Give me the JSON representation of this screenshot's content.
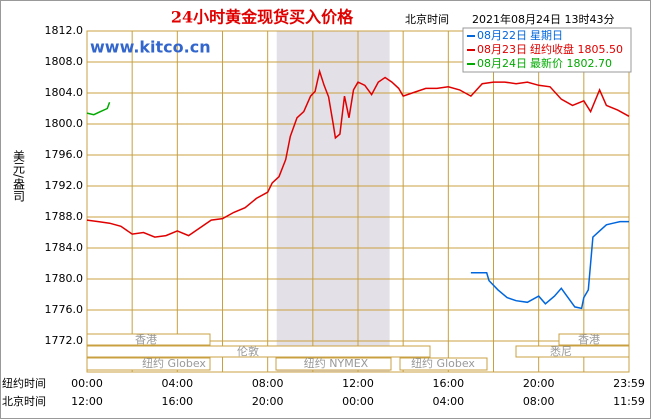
{
  "chart_data": {
    "type": "line",
    "title": "24小时黄金现货买入价格",
    "header_time_label": "北京时间",
    "header_time": "2021年08月24日 13时43分",
    "watermark": "www.kitco.cn",
    "y_label": "美元/盎司",
    "x_row_labels": [
      "纽约时间",
      "北京时间"
    ],
    "xlim": [
      0,
      24
    ],
    "xticks": [
      {
        "value": 0,
        "label": "00:00"
      },
      {
        "value": 4,
        "label": "04:00"
      },
      {
        "value": 8,
        "label": "08:00"
      },
      {
        "value": 12,
        "label": "12:00"
      },
      {
        "value": 16,
        "label": "16:00"
      },
      {
        "value": 20,
        "label": "20:00"
      },
      {
        "value": 24,
        "label": "23:59"
      }
    ],
    "x2ticks": [
      {
        "value": 0,
        "label": "12:00"
      },
      {
        "value": 4,
        "label": "16:00"
      },
      {
        "value": 8,
        "label": "20:00"
      },
      {
        "value": 12,
        "label": "00:00"
      },
      {
        "value": 16,
        "label": "04:00"
      },
      {
        "value": 20,
        "label": "08:00"
      },
      {
        "value": 24,
        "label": "11:59"
      }
    ],
    "xgrid": [
      0,
      2,
      4,
      6,
      8,
      10,
      12,
      14,
      16,
      18,
      20,
      22,
      24
    ],
    "ylim": [
      1772,
      1812
    ],
    "yticks": [
      {
        "value": 1772,
        "label": "1772.0"
      },
      {
        "value": 1776,
        "label": "1776.0"
      },
      {
        "value": 1780,
        "label": "1780.0"
      },
      {
        "value": 1784,
        "label": "1784.0"
      },
      {
        "value": 1788,
        "label": "1788.0"
      },
      {
        "value": 1792,
        "label": "1792.0"
      },
      {
        "value": 1796,
        "label": "1796.0"
      },
      {
        "value": 1800,
        "label": "1800.0"
      },
      {
        "value": 1804,
        "label": "1804.0"
      },
      {
        "value": 1808,
        "label": "1808.0"
      },
      {
        "value": 1812,
        "label": "1812.0"
      }
    ],
    "grid": true,
    "highlight_x": [
      8.4,
      13.4
    ],
    "sessions": [
      "香港",
      "伦敦",
      "纽约 Globex",
      "纽约 NYMEX",
      "纽约 Globex",
      "悉尼",
      "香港"
    ],
    "series": [
      {
        "name": "08月22日",
        "legend_text": "星期日",
        "color": "#0066dd",
        "x": [
          17,
          17.7,
          17.8,
          18.2,
          18.6,
          19,
          19.5,
          20,
          20.3,
          20.7,
          21,
          21.3,
          21.6,
          21.9,
          22,
          22.2,
          22.4,
          22.7,
          23,
          23.3,
          23.6,
          24
        ],
        "values": [
          1780.8,
          1780.8,
          1779.8,
          1778.6,
          1777.6,
          1777.2,
          1777.0,
          1777.8,
          1776.8,
          1777.8,
          1778.8,
          1777.6,
          1776.4,
          1776.2,
          1777.6,
          1778.6,
          1785.4,
          1786.2,
          1787.0,
          1787.2,
          1787.4,
          1787.4
        ]
      },
      {
        "name": "08月23日",
        "legend_text": "纽约收盘 1805.50",
        "color": "#e00000",
        "x": [
          0,
          0.5,
          1,
          1.5,
          2,
          2.5,
          3,
          3.5,
          4,
          4.5,
          5,
          5.5,
          6,
          6.5,
          7,
          7.5,
          8,
          8.2,
          8.5,
          8.8,
          9,
          9.3,
          9.6,
          9.9,
          10.1,
          10.3,
          10.5,
          10.7,
          10.9,
          11,
          11.2,
          11.4,
          11.6,
          11.8,
          12,
          12.3,
          12.6,
          12.9,
          13.2,
          13.5,
          13.8,
          14,
          14.4,
          15,
          15.5,
          16,
          16.5,
          17,
          17.5,
          18,
          18.5,
          19,
          19.5,
          20,
          20.5,
          21,
          21.5,
          22,
          22.3,
          22.7,
          23,
          23.5,
          24
        ],
        "values": [
          1787.6,
          1787.4,
          1787.2,
          1786.8,
          1785.8,
          1786.0,
          1785.4,
          1785.6,
          1786.2,
          1785.6,
          1786.6,
          1787.6,
          1787.8,
          1788.6,
          1789.2,
          1790.4,
          1791.2,
          1792.4,
          1793.2,
          1795.4,
          1798.4,
          1800.8,
          1801.6,
          1803.6,
          1804.2,
          1806.8,
          1805.0,
          1803.5,
          1800.0,
          1798.2,
          1798.7,
          1803.6,
          1800.8,
          1804.4,
          1805.4,
          1805.0,
          1803.8,
          1805.4,
          1806.0,
          1805.4,
          1804.6,
          1803.6,
          1804.0,
          1804.6,
          1804.6,
          1804.8,
          1804.4,
          1803.6,
          1805.2,
          1805.4,
          1805.4,
          1805.2,
          1805.4,
          1805.0,
          1804.8,
          1803.2,
          1802.4,
          1803.0,
          1801.6,
          1804.4,
          1802.4,
          1801.8,
          1801.0
        ]
      },
      {
        "name": "08月24日",
        "legend_text": "最新价 1802.70",
        "color": "#00aa00",
        "x": [
          0,
          0.3,
          0.6,
          0.9,
          1.0
        ],
        "values": [
          1801.4,
          1801.2,
          1801.6,
          1802.0,
          1802.8
        ]
      }
    ]
  }
}
